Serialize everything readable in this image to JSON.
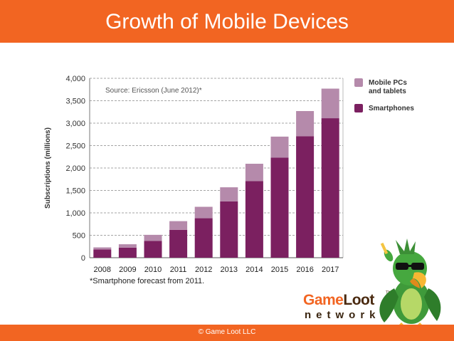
{
  "header": {
    "title": "Growth of Mobile Devices"
  },
  "footer": {
    "copyright": "© Game Loot LLC"
  },
  "logo": {
    "name_part1": "Game",
    "name_part2": "Loot",
    "tm": "TM",
    "subtitle": "network"
  },
  "colors": {
    "brand_orange": "#f26522",
    "smartphones": "#7b2060",
    "mobile_pcs": "#b58aab"
  },
  "chart_data": {
    "type": "bar",
    "stacked": true,
    "categories": [
      "2008",
      "2009",
      "2010",
      "2011",
      "2012",
      "2013",
      "2014",
      "2015",
      "2016",
      "2017"
    ],
    "series": [
      {
        "name": "Smartphones",
        "values": [
          185,
          225,
          375,
          620,
          880,
          1255,
          1710,
          2230,
          2710,
          3110
        ]
      },
      {
        "name": "Mobile PCs and tablets",
        "values": [
          45,
          75,
          135,
          195,
          255,
          315,
          385,
          470,
          560,
          660
        ]
      }
    ],
    "ylabel": "Subscriptions (millions)",
    "ylim": [
      0,
      4000
    ],
    "yticks": [
      "0",
      "500",
      "1,000",
      "1,500",
      "2,000",
      "2,500",
      "3,000",
      "3,500",
      "4,000"
    ],
    "ytick_values": [
      0,
      500,
      1000,
      1500,
      2000,
      2500,
      3000,
      3500,
      4000
    ],
    "source": "Source: Ericsson (June 2012)*",
    "footnote": "*Smartphone forecast from 2011.",
    "legend": [
      {
        "name": "Mobile PCs\nand tablets",
        "color": "#b58aab"
      },
      {
        "name": "Smartphones",
        "color": "#7b2060"
      }
    ],
    "legend_position": "top-right",
    "grid": true
  }
}
